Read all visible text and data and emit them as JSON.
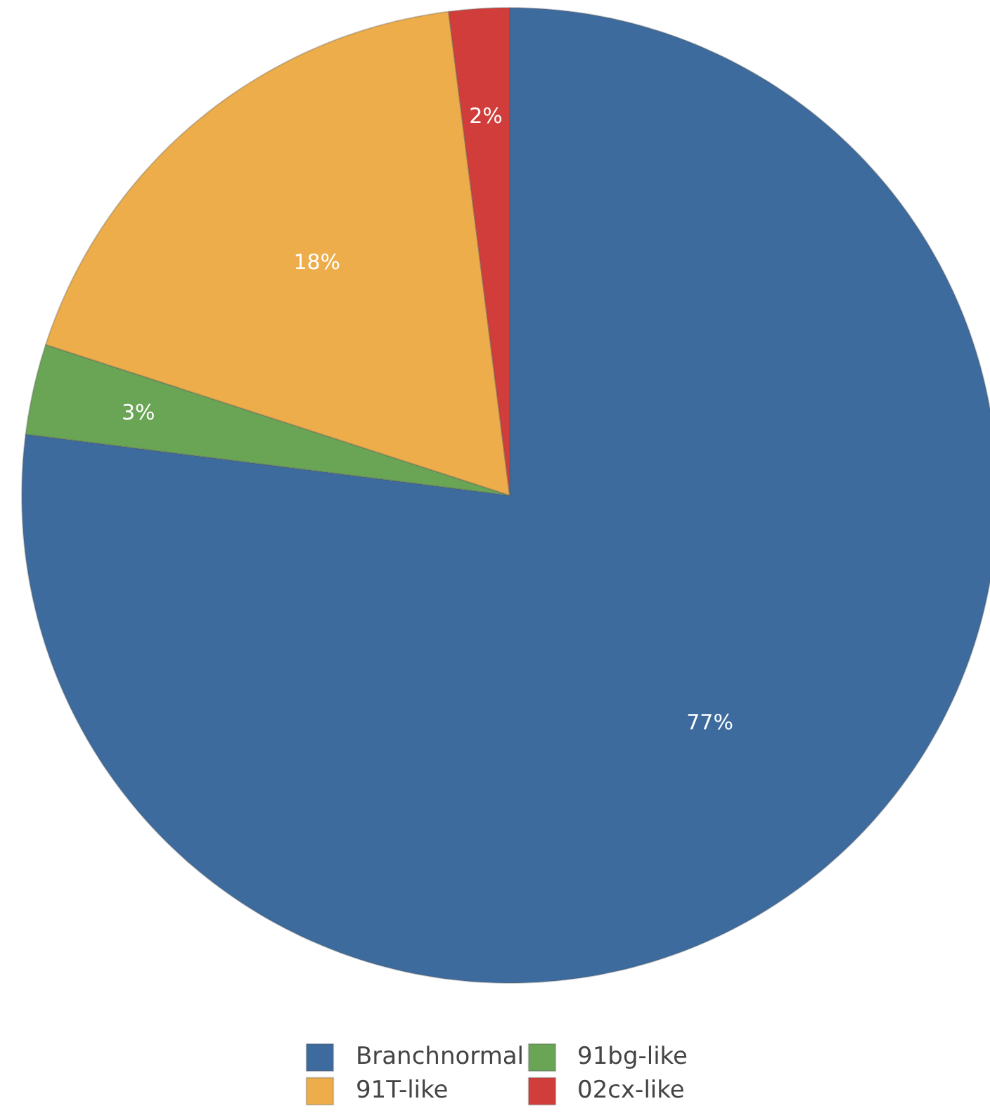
{
  "chart_data": {
    "type": "pie",
    "categories": [
      "Branchnormal",
      "91bg-like",
      "91T-like",
      "02cx-like"
    ],
    "values": [
      77,
      3,
      18,
      2
    ],
    "colors": [
      "#3d6b9e",
      "#6aa556",
      "#ecad4a",
      "#d13d3a"
    ],
    "value_labels": [
      "77%",
      "3%",
      "18%",
      "2%"
    ],
    "legend": "bottom"
  }
}
